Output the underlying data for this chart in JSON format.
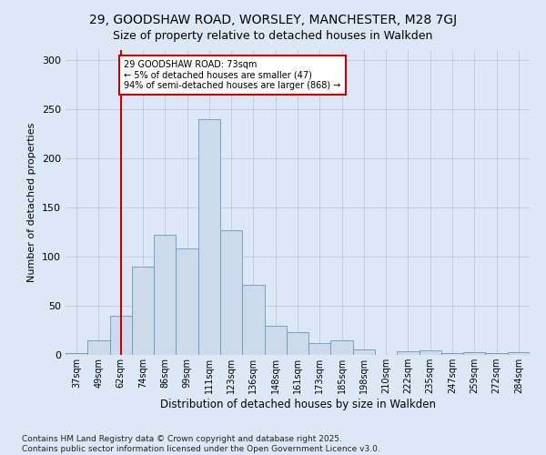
{
  "title_line1": "29, GOODSHAW ROAD, WORSLEY, MANCHESTER, M28 7GJ",
  "title_line2": "Size of property relative to detached houses in Walkden",
  "xlabel": "Distribution of detached houses by size in Walkden",
  "ylabel": "Number of detached properties",
  "bar_color": "#ccdaeb",
  "bar_edge_color": "#6699bb",
  "background_color": "#dce8f5",
  "grid_color": "#b0b8cc",
  "annotation_text": "29 GOODSHAW ROAD: 73sqm\n← 5% of detached houses are smaller (47)\n94% of semi-detached houses are larger (868) →",
  "vline_color": "#cc0000",
  "annotation_box_color": "#ffffff",
  "annotation_box_edge": "#cc0000",
  "bar_labels": [
    "37sqm",
    "49sqm",
    "62sqm",
    "74sqm",
    "86sqm",
    "99sqm",
    "111sqm",
    "123sqm",
    "136sqm",
    "148sqm",
    "161sqm",
    "173sqm",
    "185sqm",
    "198sqm",
    "210sqm",
    "222sqm",
    "235sqm",
    "247sqm",
    "259sqm",
    "272sqm",
    "284sqm"
  ],
  "bar_heights": [
    2,
    15,
    40,
    90,
    122,
    108,
    240,
    127,
    71,
    30,
    23,
    12,
    15,
    6,
    0,
    4,
    5,
    2,
    3,
    2,
    3
  ],
  "vline_index": 2,
  "ylim": [
    0,
    310
  ],
  "yticks": [
    0,
    50,
    100,
    150,
    200,
    250,
    300
  ],
  "footer": "Contains HM Land Registry data © Crown copyright and database right 2025.\nContains public sector information licensed under the Open Government Licence v3.0."
}
